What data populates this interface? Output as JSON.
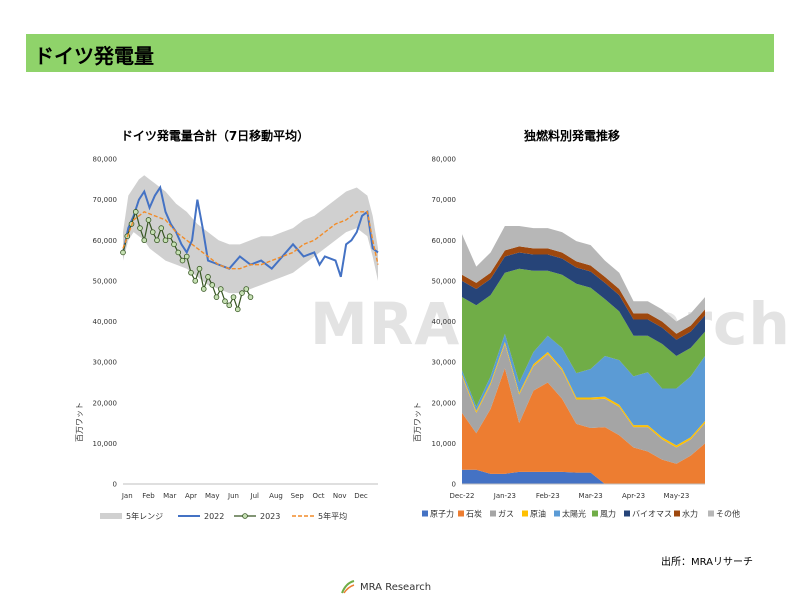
{
  "header": {
    "title": "ドイツ発電量"
  },
  "watermark": {
    "text": "MRA Research"
  },
  "source": "出所：MRAリサーチ",
  "logo": {
    "text": "MRA Research",
    "icon": "mra-logo-icon"
  },
  "colors": {
    "header_bg": "#8fd36a",
    "range": "#d0d0d0",
    "y2022": "#4472c4",
    "y2023_line": "#375623",
    "y2023_marker": "#c6e0b4",
    "avg": "#f28c28"
  },
  "chart_data": [
    {
      "type": "line",
      "title": "ドイツ発電量合計（7日移動平均）",
      "ylabel": "百万ワット",
      "ylim": [
        0,
        80000
      ],
      "yticks": [
        "0",
        "10,000",
        "20,000",
        "30,000",
        "40,000",
        "50,000",
        "60,000",
        "70,000",
        "80,000"
      ],
      "xlabels": [
        "Jan",
        "Feb",
        "Mar",
        "Apr",
        "May",
        "Jun",
        "Jul",
        "Aug",
        "Sep",
        "Oct",
        "Nov",
        "Dec"
      ],
      "legend": [
        "5年レンジ",
        "2022",
        "2023",
        "5年平均"
      ],
      "range": {
        "x": [
          0,
          0.25,
          0.5,
          0.75,
          1,
          1.25,
          1.5,
          1.75,
          2,
          2.5,
          3,
          3.5,
          4,
          4.5,
          5,
          5.5,
          6,
          6.5,
          7,
          7.5,
          8,
          8.5,
          9,
          9.5,
          10,
          10.5,
          11,
          11.5,
          11.75,
          12
        ],
        "low": [
          55000,
          60000,
          62000,
          61000,
          60000,
          58000,
          57000,
          56000,
          55000,
          54000,
          53000,
          51000,
          49000,
          48000,
          47000,
          47000,
          48000,
          49000,
          50000,
          51000,
          52000,
          54000,
          56000,
          58000,
          60000,
          62000,
          63000,
          61000,
          56000,
          50000
        ],
        "high": [
          62000,
          71000,
          73000,
          75000,
          76000,
          75000,
          74000,
          73000,
          72000,
          69000,
          67000,
          64000,
          62000,
          60000,
          59000,
          59000,
          60000,
          61000,
          61000,
          62000,
          63000,
          65000,
          66000,
          68000,
          70000,
          72000,
          73000,
          71000,
          66000,
          58000
        ]
      },
      "series": [
        {
          "name": "2022",
          "x": [
            0,
            0.25,
            0.5,
            0.75,
            1,
            1.25,
            1.5,
            1.75,
            2,
            2.25,
            2.5,
            2.75,
            3,
            3.25,
            3.5,
            3.75,
            4,
            4.5,
            5,
            5.5,
            6,
            6.5,
            7,
            7.5,
            8,
            8.5,
            9,
            9.25,
            9.5,
            10,
            10.25,
            10.5,
            10.75,
            11,
            11.25,
            11.5,
            11.75,
            12
          ],
          "y": [
            57000,
            63000,
            66000,
            70000,
            72000,
            68000,
            71000,
            73000,
            67000,
            64000,
            62000,
            59000,
            57000,
            60000,
            70000,
            63000,
            55000,
            54000,
            53000,
            56000,
            54000,
            55000,
            53000,
            56000,
            59000,
            56000,
            57000,
            54000,
            56000,
            55000,
            51000,
            59000,
            60000,
            62000,
            66000,
            67000,
            58000,
            57000
          ]
        },
        {
          "name": "2023",
          "x": [
            0,
            0.2,
            0.4,
            0.6,
            0.8,
            1,
            1.2,
            1.4,
            1.6,
            1.8,
            2,
            2.2,
            2.4,
            2.6,
            2.8,
            3,
            3.2,
            3.4,
            3.6,
            3.8,
            4,
            4.2,
            4.4,
            4.6,
            4.8,
            5,
            5.2,
            5.4,
            5.6,
            5.8,
            6
          ],
          "y": [
            57000,
            61000,
            64000,
            67000,
            63000,
            60000,
            65000,
            62000,
            60000,
            63000,
            60000,
            61000,
            59000,
            57000,
            55000,
            56000,
            52000,
            50000,
            53000,
            48000,
            51000,
            49000,
            46000,
            48000,
            45000,
            44000,
            46000,
            43000,
            47000,
            48000,
            46000
          ]
        },
        {
          "name": "5年平均",
          "x": [
            0,
            0.5,
            1,
            1.5,
            2,
            2.5,
            3,
            3.5,
            4,
            4.5,
            5,
            5.5,
            6,
            6.5,
            7,
            7.5,
            8,
            8.5,
            9,
            9.5,
            10,
            10.5,
            11,
            11.5,
            11.75,
            12
          ],
          "y": [
            58000,
            65000,
            67000,
            66000,
            65000,
            62000,
            60000,
            58000,
            56000,
            54000,
            53000,
            53000,
            54000,
            54000,
            55000,
            56000,
            57000,
            59000,
            60000,
            62000,
            64000,
            65000,
            67000,
            67000,
            60000,
            54000
          ]
        }
      ]
    },
    {
      "type": "area",
      "title": "独燃料別発電推移",
      "ylabel": "百万ワット",
      "ylim": [
        0,
        80000
      ],
      "yticks": [
        "0",
        "10,000",
        "20,000",
        "30,000",
        "40,000",
        "50,000",
        "60,000",
        "70,000",
        "80,000"
      ],
      "xlabels": [
        "Dec-22",
        "Jan-23",
        "Feb-23",
        "Mar-23",
        "Apr-23",
        "May-23"
      ],
      "legend": [
        "原子力",
        "石炭",
        "ガス",
        "原油",
        "太陽光",
        "風力",
        "バイオマス",
        "水力",
        "その他"
      ],
      "x": [
        0,
        0.5,
        1,
        1.5,
        2,
        2.5,
        3,
        3.5,
        4,
        4.5,
        5,
        5.5,
        6,
        6.5,
        7,
        7.5,
        8,
        8.5
      ],
      "series": [
        {
          "name": "原子力",
          "color": "#4472c4",
          "values": [
            3500,
            3500,
            2500,
            2500,
            3000,
            3000,
            3000,
            3000,
            2800,
            2800,
            0,
            0,
            0,
            0,
            0,
            0,
            0,
            0
          ]
        },
        {
          "name": "石炭",
          "color": "#ed7d31",
          "values": [
            14000,
            9000,
            16000,
            26000,
            12000,
            20000,
            22000,
            18000,
            12000,
            11000,
            14000,
            12000,
            9000,
            8000,
            6000,
            5000,
            7000,
            10000
          ]
        },
        {
          "name": "ガス",
          "color": "#a5a5a5",
          "values": [
            9000,
            5000,
            6000,
            6000,
            7000,
            6000,
            7000,
            7000,
            6000,
            7000,
            7000,
            7000,
            5000,
            6000,
            5000,
            4000,
            4000,
            5000
          ]
        },
        {
          "name": "原油",
          "color": "#ffc000",
          "values": [
            500,
            500,
            500,
            500,
            500,
            500,
            500,
            500,
            500,
            500,
            500,
            500,
            500,
            500,
            500,
            500,
            500,
            500
          ]
        },
        {
          "name": "太陽光",
          "color": "#5b9bd5",
          "values": [
            1000,
            1000,
            1500,
            2000,
            2500,
            3000,
            4000,
            5000,
            6000,
            7000,
            10000,
            11000,
            12000,
            13000,
            12000,
            14000,
            15000,
            16000
          ]
        },
        {
          "name": "風力",
          "color": "#70ad47",
          "values": [
            18000,
            25000,
            20000,
            15000,
            28000,
            20000,
            16000,
            18000,
            22000,
            20000,
            14000,
            12000,
            10000,
            9000,
            11000,
            8000,
            7000,
            6000
          ]
        },
        {
          "name": "バイオマス",
          "color": "#264478",
          "values": [
            4000,
            4000,
            4000,
            4000,
            4000,
            4000,
            4000,
            4000,
            4000,
            4000,
            4000,
            4000,
            4000,
            4000,
            4000,
            4000,
            4000,
            4000
          ]
        },
        {
          "name": "水力",
          "color": "#9e480e",
          "values": [
            1500,
            1500,
            1500,
            1500,
            1500,
            1500,
            1500,
            1500,
            1500,
            1500,
            1500,
            1500,
            1500,
            1500,
            1500,
            1500,
            1500,
            1500
          ]
        },
        {
          "name": "その他",
          "color": "#b7b7b7",
          "values": [
            10000,
            4000,
            5000,
            6000,
            5000,
            5000,
            5000,
            5000,
            5000,
            5000,
            4000,
            4000,
            3000,
            3000,
            3000,
            3000,
            3000,
            3000
          ]
        }
      ]
    }
  ]
}
